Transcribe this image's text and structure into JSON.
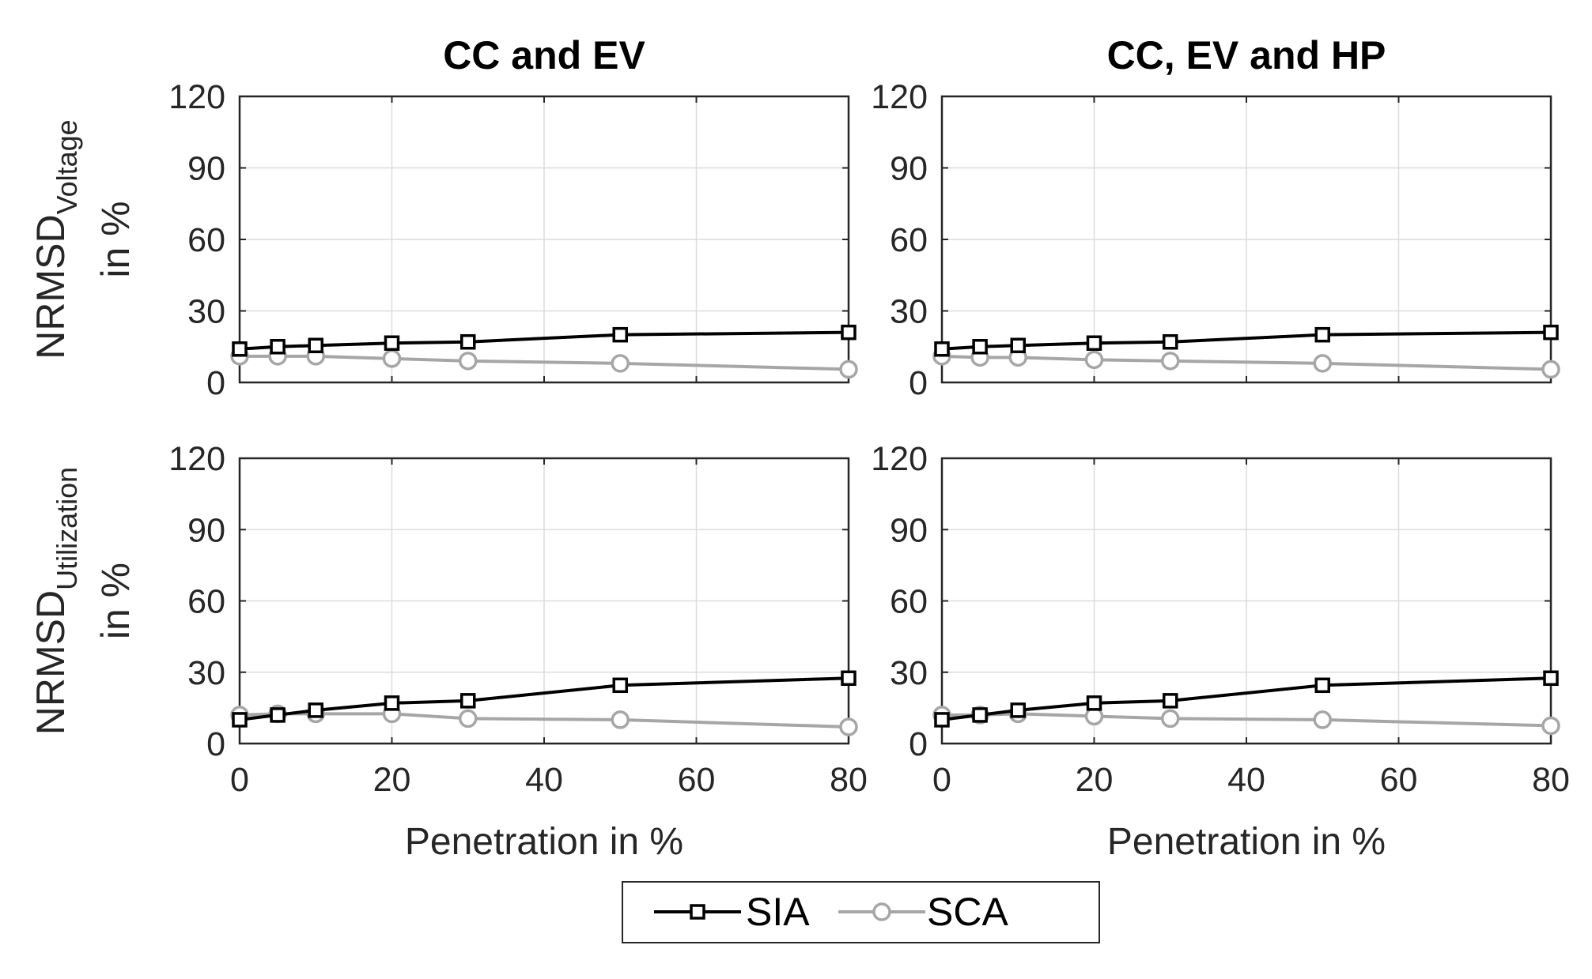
{
  "chart_data": [
    {
      "type": "line",
      "panel": "top-left",
      "title": "CC and EV",
      "ylabel": "NRMSD",
      "ylabel_sub": "Voltage",
      "ylabel_line2": "in %",
      "xlabel": "",
      "x": [
        0,
        5,
        10,
        20,
        30,
        50,
        80
      ],
      "xlim": [
        0,
        80
      ],
      "ylim": [
        0,
        120
      ],
      "xticks": [
        0,
        20,
        40,
        60,
        80
      ],
      "yticks": [
        0,
        30,
        60,
        90,
        120
      ],
      "grid": true,
      "series": [
        {
          "name": "SIA",
          "values": [
            14,
            15,
            15.5,
            16.5,
            17,
            20,
            21
          ]
        },
        {
          "name": "SCA",
          "values": [
            11,
            11,
            11,
            10,
            9,
            8,
            5.5
          ]
        }
      ]
    },
    {
      "type": "line",
      "panel": "top-right",
      "title": "CC, EV and HP",
      "ylabel": "",
      "xlabel": "",
      "x": [
        0,
        5,
        10,
        20,
        30,
        50,
        80
      ],
      "xlim": [
        0,
        80
      ],
      "ylim": [
        0,
        120
      ],
      "xticks": [
        0,
        20,
        40,
        60,
        80
      ],
      "yticks": [
        0,
        30,
        60,
        90,
        120
      ],
      "grid": true,
      "series": [
        {
          "name": "SIA",
          "values": [
            14,
            15,
            15.5,
            16.5,
            17,
            20,
            21
          ]
        },
        {
          "name": "SCA",
          "values": [
            11,
            10.5,
            10.5,
            9.5,
            9,
            8,
            5.5
          ]
        }
      ]
    },
    {
      "type": "line",
      "panel": "bottom-left",
      "title": "",
      "ylabel": "NRMSD",
      "ylabel_sub": "Utilization",
      "ylabel_line2": "in %",
      "xlabel": "Penetration in %",
      "x": [
        0,
        5,
        10,
        20,
        30,
        50,
        80
      ],
      "xlim": [
        0,
        80
      ],
      "ylim": [
        0,
        120
      ],
      "xticks": [
        0,
        20,
        40,
        60,
        80
      ],
      "yticks": [
        0,
        30,
        60,
        90,
        120
      ],
      "grid": true,
      "series": [
        {
          "name": "SIA",
          "values": [
            10,
            12,
            14,
            17,
            18,
            24.5,
            27.5
          ]
        },
        {
          "name": "SCA",
          "values": [
            12,
            12.5,
            12.5,
            12.5,
            10.5,
            10,
            7
          ]
        }
      ]
    },
    {
      "type": "line",
      "panel": "bottom-right",
      "title": "",
      "ylabel": "",
      "xlabel": "Penetration in %",
      "x": [
        0,
        5,
        10,
        20,
        30,
        50,
        80
      ],
      "xlim": [
        0,
        80
      ],
      "ylim": [
        0,
        120
      ],
      "xticks": [
        0,
        20,
        40,
        60,
        80
      ],
      "yticks": [
        0,
        30,
        60,
        90,
        120
      ],
      "grid": true,
      "series": [
        {
          "name": "SIA",
          "values": [
            10,
            12,
            14,
            17,
            18,
            24.5,
            27.5
          ]
        },
        {
          "name": "SCA",
          "values": [
            12,
            12,
            12.5,
            11.5,
            10.5,
            10,
            7.5
          ]
        }
      ]
    }
  ],
  "legend": {
    "placement": "bottom-center",
    "items": [
      {
        "label": "SIA",
        "marker": "square-marker"
      },
      {
        "label": "SCA",
        "marker": "circle-marker"
      }
    ]
  },
  "colors": {
    "SIA": "#000000",
    "SCA": "#a6a6a6",
    "axis": "#262626",
    "grid": "#dcdcdc"
  }
}
